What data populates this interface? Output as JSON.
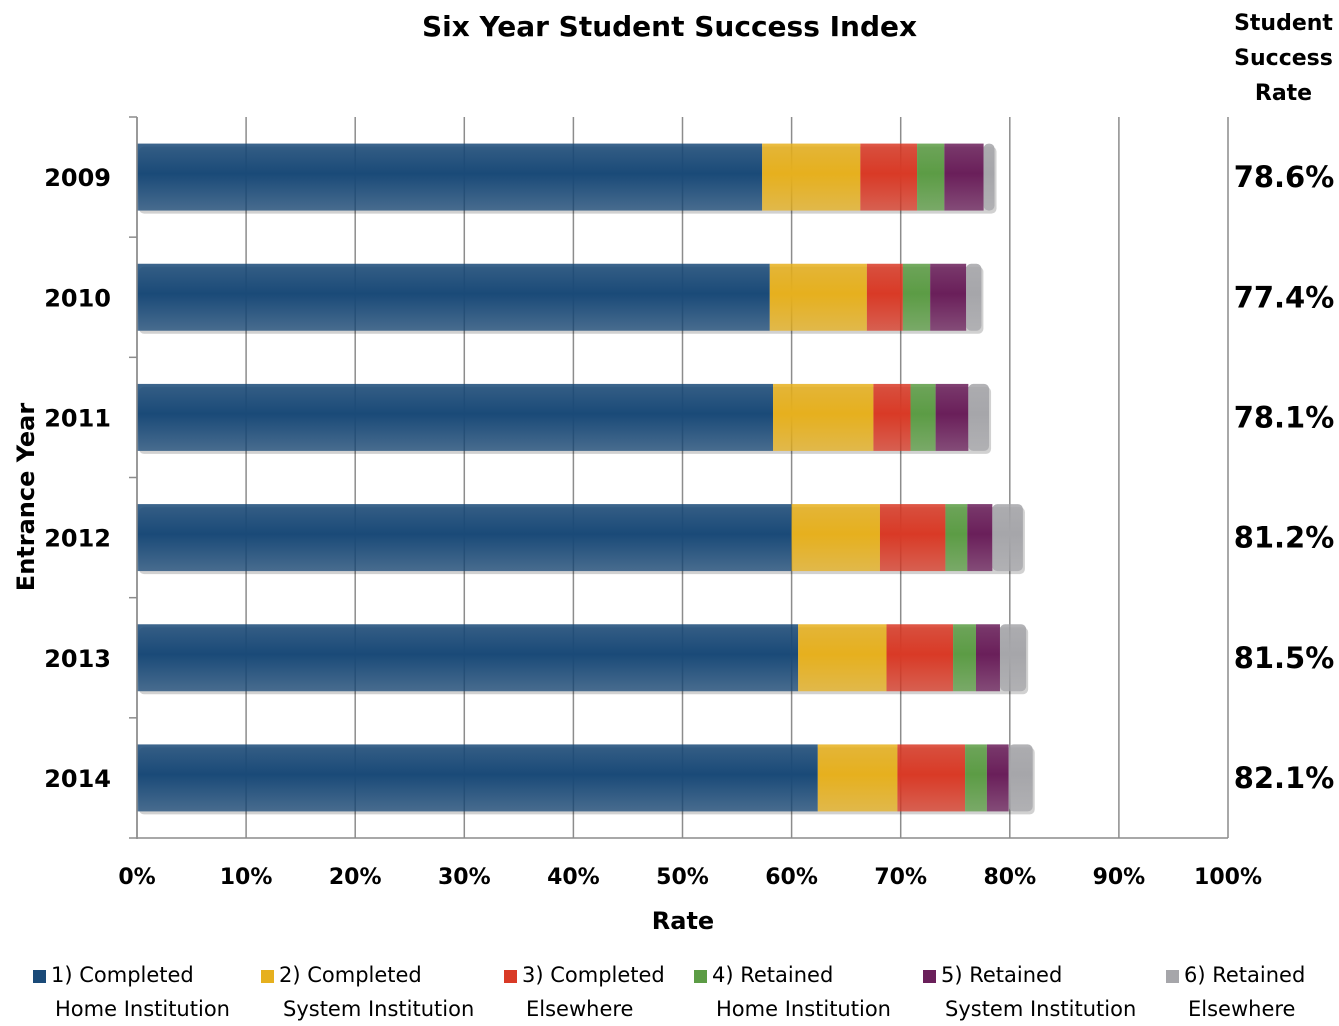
{
  "title": "Six Year Student Success Index",
  "rate_header": [
    "Student",
    "Success",
    "Rate"
  ],
  "chart_data": {
    "type": "bar",
    "orientation": "horizontal",
    "stacked": true,
    "title": "Six Year Student Success Index",
    "xlabel": "Rate",
    "ylabel": "Entrance Year",
    "xlim": [
      0,
      100
    ],
    "x_ticks": [
      "0%",
      "10%",
      "20%",
      "30%",
      "40%",
      "50%",
      "60%",
      "70%",
      "80%",
      "90%",
      "100%"
    ],
    "grid": true,
    "legend_position": "bottom",
    "categories": [
      "2009",
      "2010",
      "2011",
      "2012",
      "2013",
      "2014"
    ],
    "series": [
      {
        "name": "1) Completed Home Institution",
        "name_lines": [
          "1) Completed",
          "Home Institution"
        ],
        "color": "#1a4a78",
        "values": [
          57.3,
          58.0,
          58.3,
          60.0,
          60.6,
          62.4
        ]
      },
      {
        "name": "2) Completed System Institution",
        "name_lines": [
          "2) Completed",
          "System Institution"
        ],
        "color": "#e6b01e",
        "values": [
          9.0,
          8.9,
          9.2,
          8.1,
          8.1,
          7.3
        ]
      },
      {
        "name": "3) Completed Elsewhere",
        "name_lines": [
          "3) Completed",
          "Elsewhere"
        ],
        "color": "#d93a26",
        "values": [
          5.2,
          3.3,
          3.4,
          6.0,
          6.1,
          6.2
        ]
      },
      {
        "name": "4) Retained Home Institution",
        "name_lines": [
          "4) Retained",
          "Home Institution"
        ],
        "color": "#5c9c45",
        "values": [
          2.5,
          2.5,
          2.3,
          2.0,
          2.1,
          2.0
        ]
      },
      {
        "name": "5) Retained System Institution",
        "name_lines": [
          "5) Retained",
          "System Institution"
        ],
        "color": "#6a1f5a",
        "values": [
          3.6,
          3.3,
          3.0,
          2.3,
          2.2,
          2.0
        ]
      },
      {
        "name": "6) Retained Elsewhere",
        "name_lines": [
          "6) Retained",
          "Elsewhere"
        ],
        "color": "#a6a6aa",
        "values": [
          1.0,
          1.4,
          1.9,
          2.8,
          2.4,
          2.2
        ]
      }
    ],
    "success_rates": [
      "78.6%",
      "77.4%",
      "78.1%",
      "81.2%",
      "81.5%",
      "82.1%"
    ]
  }
}
